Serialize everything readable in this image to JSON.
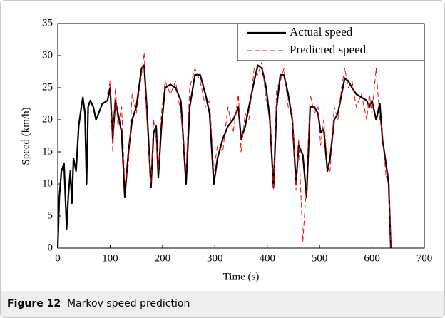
{
  "chart_data": {
    "type": "line",
    "x_label": "Time (s)",
    "y_label": "Speed (km/h)",
    "x": [
      0,
      3,
      7,
      12,
      17,
      20,
      24,
      27,
      30,
      35,
      40,
      45,
      48,
      52,
      55,
      58,
      62,
      68,
      73,
      78,
      85,
      95,
      100,
      105,
      110,
      115,
      122,
      128,
      135,
      142,
      150,
      160,
      165,
      170,
      178,
      183,
      188,
      192,
      198,
      205,
      215,
      225,
      235,
      245,
      252,
      262,
      272,
      282,
      290,
      298,
      305,
      315,
      325,
      335,
      345,
      350,
      358,
      365,
      375,
      382,
      390,
      398,
      405,
      412,
      418,
      425,
      432,
      440,
      448,
      455,
      460,
      468,
      475,
      482,
      490,
      497,
      502,
      508,
      515,
      520,
      528,
      535,
      542,
      548,
      555,
      562,
      570,
      580,
      590,
      595,
      600,
      608,
      615,
      620,
      627,
      632,
      636
    ],
    "series": [
      {
        "name": "Actual speed",
        "color": "#000000",
        "dash": "solid",
        "values": [
          0,
          8,
          12,
          13.2,
          3,
          8,
          12,
          7,
          14,
          12,
          19,
          22,
          23.5,
          21,
          10,
          22,
          23,
          22,
          20,
          21,
          22.5,
          23,
          25,
          17,
          23,
          21,
          18,
          8,
          15,
          20,
          22,
          28,
          28.5,
          22,
          9.5,
          18,
          19,
          11,
          19,
          25,
          25.5,
          25,
          23,
          10,
          22,
          27,
          27,
          24,
          21,
          10,
          14,
          17,
          19,
          20,
          22,
          17,
          19,
          22,
          26,
          28.5,
          28,
          25,
          20,
          9.5,
          22,
          27,
          27,
          24,
          20,
          10,
          16,
          14.5,
          8,
          22,
          22,
          21,
          18,
          18.5,
          12,
          14,
          20,
          21,
          24,
          26.5,
          26,
          25,
          24,
          23.5,
          23,
          22,
          23,
          20,
          22.5,
          17,
          13,
          10,
          0
        ]
      },
      {
        "name": "Predicted speed",
        "color": "#ff0000",
        "dash": "dashed",
        "values": [
          null,
          null,
          null,
          null,
          null,
          null,
          null,
          null,
          null,
          null,
          null,
          null,
          null,
          null,
          null,
          null,
          null,
          null,
          null,
          null,
          null,
          24,
          26,
          15,
          25,
          19,
          22,
          10,
          13,
          24,
          21,
          27,
          30.5,
          20,
          10,
          20,
          17,
          12,
          21,
          26,
          24,
          26,
          21,
          12,
          25,
          28,
          26,
          22,
          23,
          12,
          16,
          15,
          22,
          18,
          24,
          15,
          21,
          20,
          28,
          27,
          29,
          23,
          22,
          9,
          25,
          26,
          28,
          22,
          21,
          9,
          17,
          1,
          10,
          24,
          21,
          22,
          16,
          20,
          13,
          12,
          22,
          20,
          25,
          28,
          25,
          26,
          22,
          24,
          20,
          24,
          21,
          28,
          20,
          18,
          11,
          12,
          0
        ]
      }
    ],
    "xlim": [
      0,
      700
    ],
    "xticks": [
      0,
      100,
      200,
      300,
      400,
      500,
      600,
      700
    ],
    "ylim": [
      0,
      35
    ],
    "yticks": [
      0,
      5,
      10,
      15,
      20,
      25,
      30,
      35
    ],
    "legend": "upper right"
  },
  "caption": {
    "label": "Figure 12",
    "text": "Markov speed prediction"
  }
}
